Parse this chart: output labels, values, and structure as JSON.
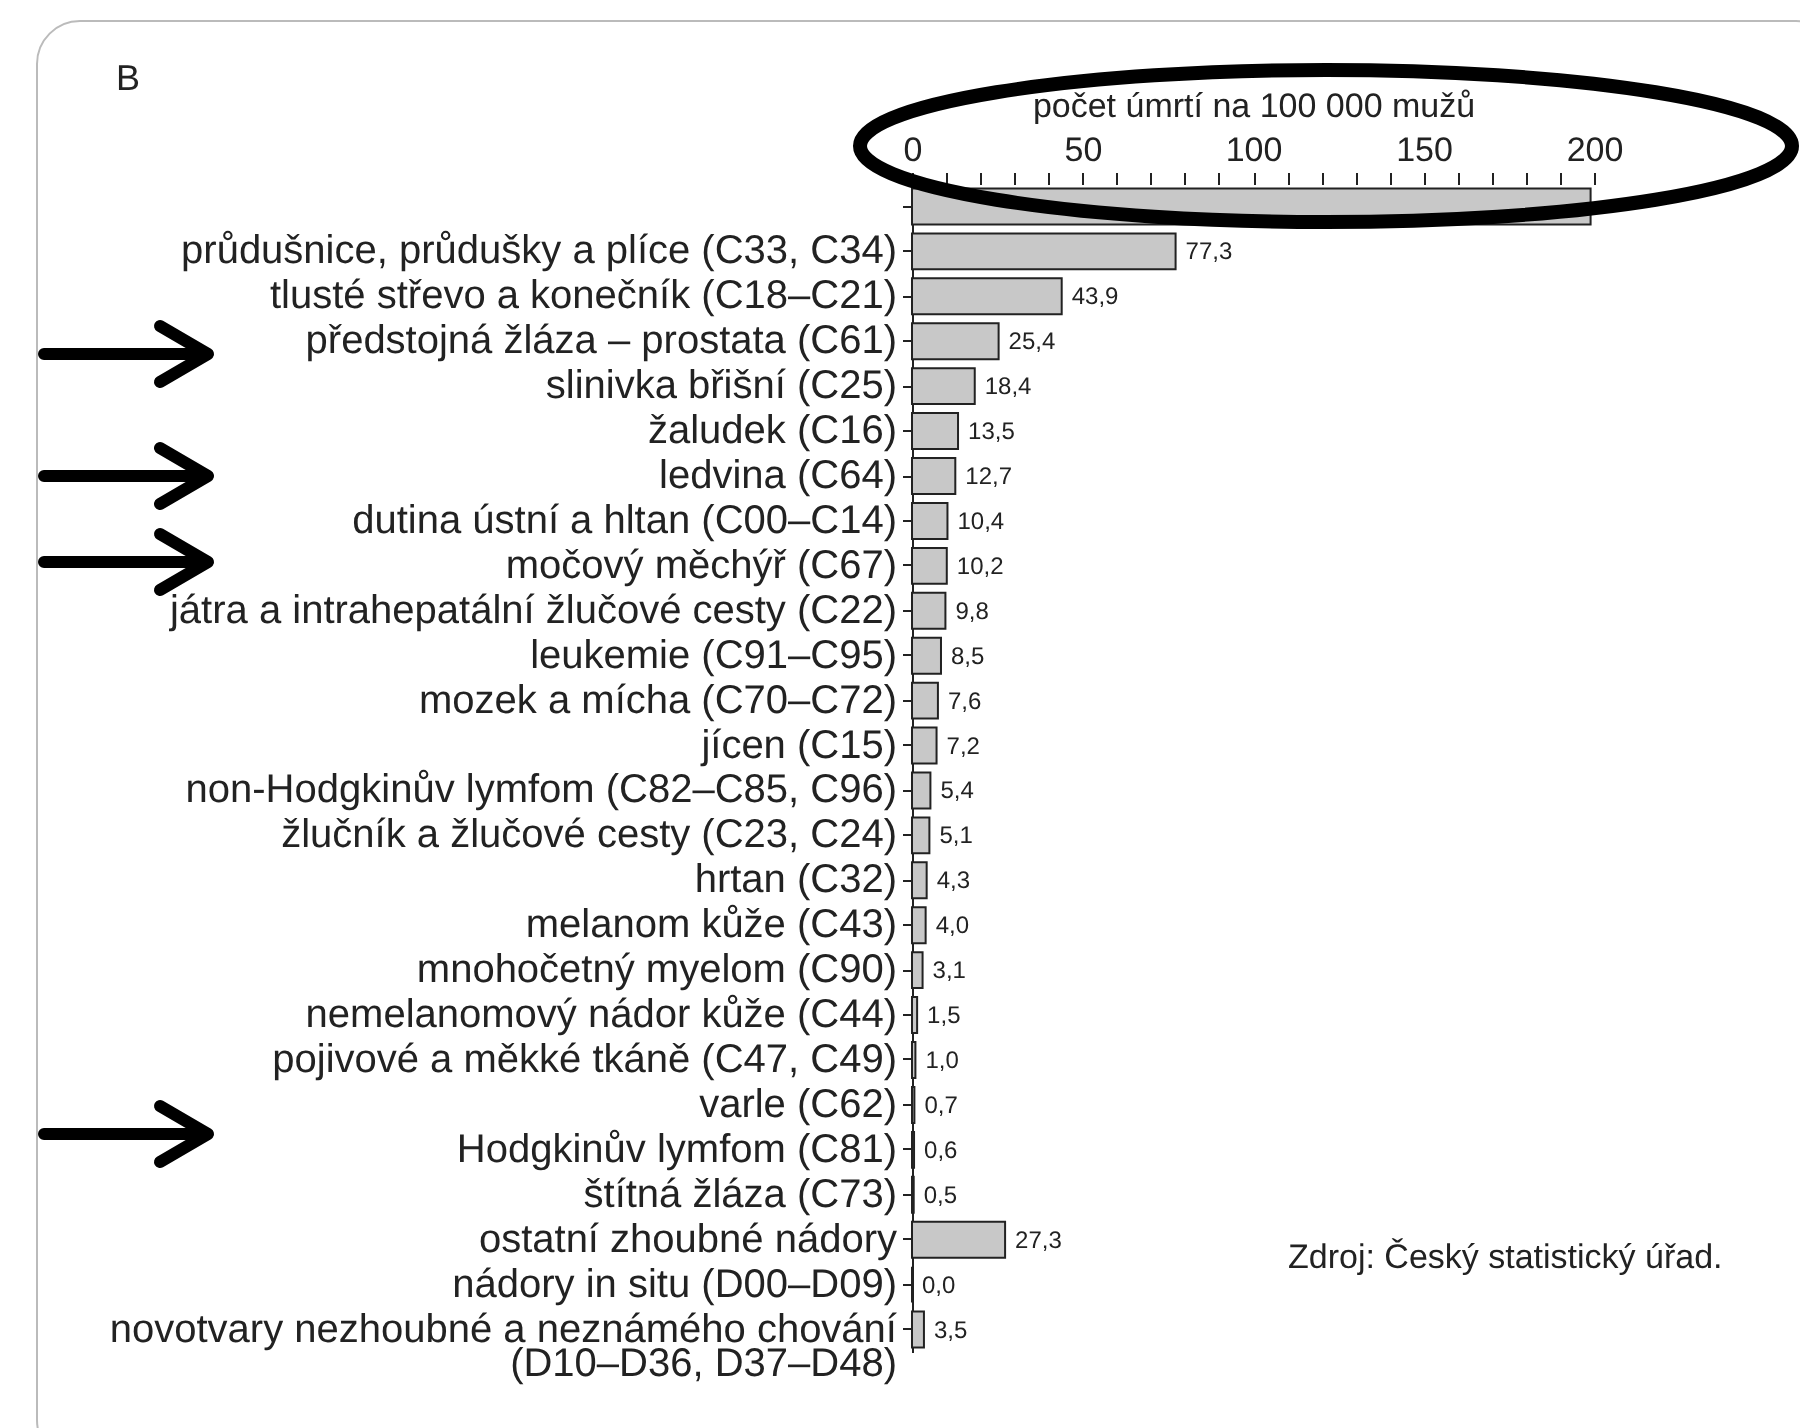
{
  "chart_data": {
    "type": "bar",
    "orientation": "horizontal",
    "title": "B",
    "xlabel": "počet úmrtí na 100 000 mužů",
    "categories": [
      null,
      "průdušnice, průdušky a plíce (C33, C34)",
      "tlusté střevo a konečník (C18–C21)",
      "předstojná žláza – prostata (C61)",
      "slinivka břišní (C25)",
      "žaludek (C16)",
      "ledvina (C64)",
      "dutina ústní a hltan (C00–C14)",
      "močový měchýř (C67)",
      "játra a intrahepatální žlučové cesty (C22)",
      "leukemie (C91–C95)",
      "mozek a mícha (C70–C72)",
      "jícen (C15)",
      "non-Hodgkinův lymfom (C82–C85, C96)",
      "žlučník a žlučové cesty (C23, C24)",
      "hrtan (C32)",
      "melanom kůže (C43)",
      "mnohočetný myelom (C90)",
      "nemelanomový nádor kůže (C44)",
      "pojivové a měkké tkáně (C47, C49)",
      "varle (C62)",
      "Hodgkinův lymfom (C81)",
      "štítná žláza (C73)",
      "ostatní zhoubné nádory",
      "nádory in situ (D00–D09)",
      "novotvary nezhoubné a neznámého chování\n(D10–D36, D37–D48)"
    ],
    "values": [
      199,
      77.3,
      43.9,
      25.4,
      18.4,
      13.5,
      12.7,
      10.4,
      10.2,
      9.8,
      8.5,
      7.6,
      7.2,
      5.4,
      5.1,
      4.3,
      4.0,
      3.1,
      1.5,
      1.0,
      0.7,
      0.6,
      0.5,
      27.3,
      0.0,
      3.5
    ],
    "value_labels": [
      null,
      "77,3",
      "43,9",
      "25,4",
      "18,4",
      "13,5",
      "12,7",
      "10,4",
      "10,2",
      "9,8",
      "8,5",
      "7,6",
      "7,2",
      "5,4",
      "5,1",
      "4,3",
      "4,0",
      "3,1",
      "1,5",
      "1,0",
      "0,7",
      "0,6",
      "0,5",
      "27,3",
      "0,0",
      "3,5"
    ],
    "color": "#c8c8c8",
    "xlim": [
      0,
      200
    ],
    "xticks": [
      0,
      {
        "value": 10,
        "label": null
      },
      {
        "value": 20,
        "label": null
      },
      {
        "value": 30,
        "label": null
      },
      {
        "value": 40,
        "label": null
      },
      50,
      {
        "value": 60,
        "label": null
      },
      {
        "value": 70,
        "label": null
      },
      {
        "value": 80,
        "label": null
      },
      {
        "value": 90,
        "label": null
      },
      100,
      {
        "value": 110,
        "label": null
      },
      {
        "value": 120,
        "label": null
      },
      {
        "value": 130,
        "label": null
      },
      {
        "value": 140,
        "label": null
      },
      150,
      {
        "value": 160,
        "label": null
      },
      {
        "value": 170,
        "label": null
      },
      {
        "value": 180,
        "label": null
      },
      {
        "value": 190,
        "label": null
      },
      200
    ],
    "grid": false,
    "annotations": [
      "Zdroj: Český statistický úřad."
    ]
  }
}
